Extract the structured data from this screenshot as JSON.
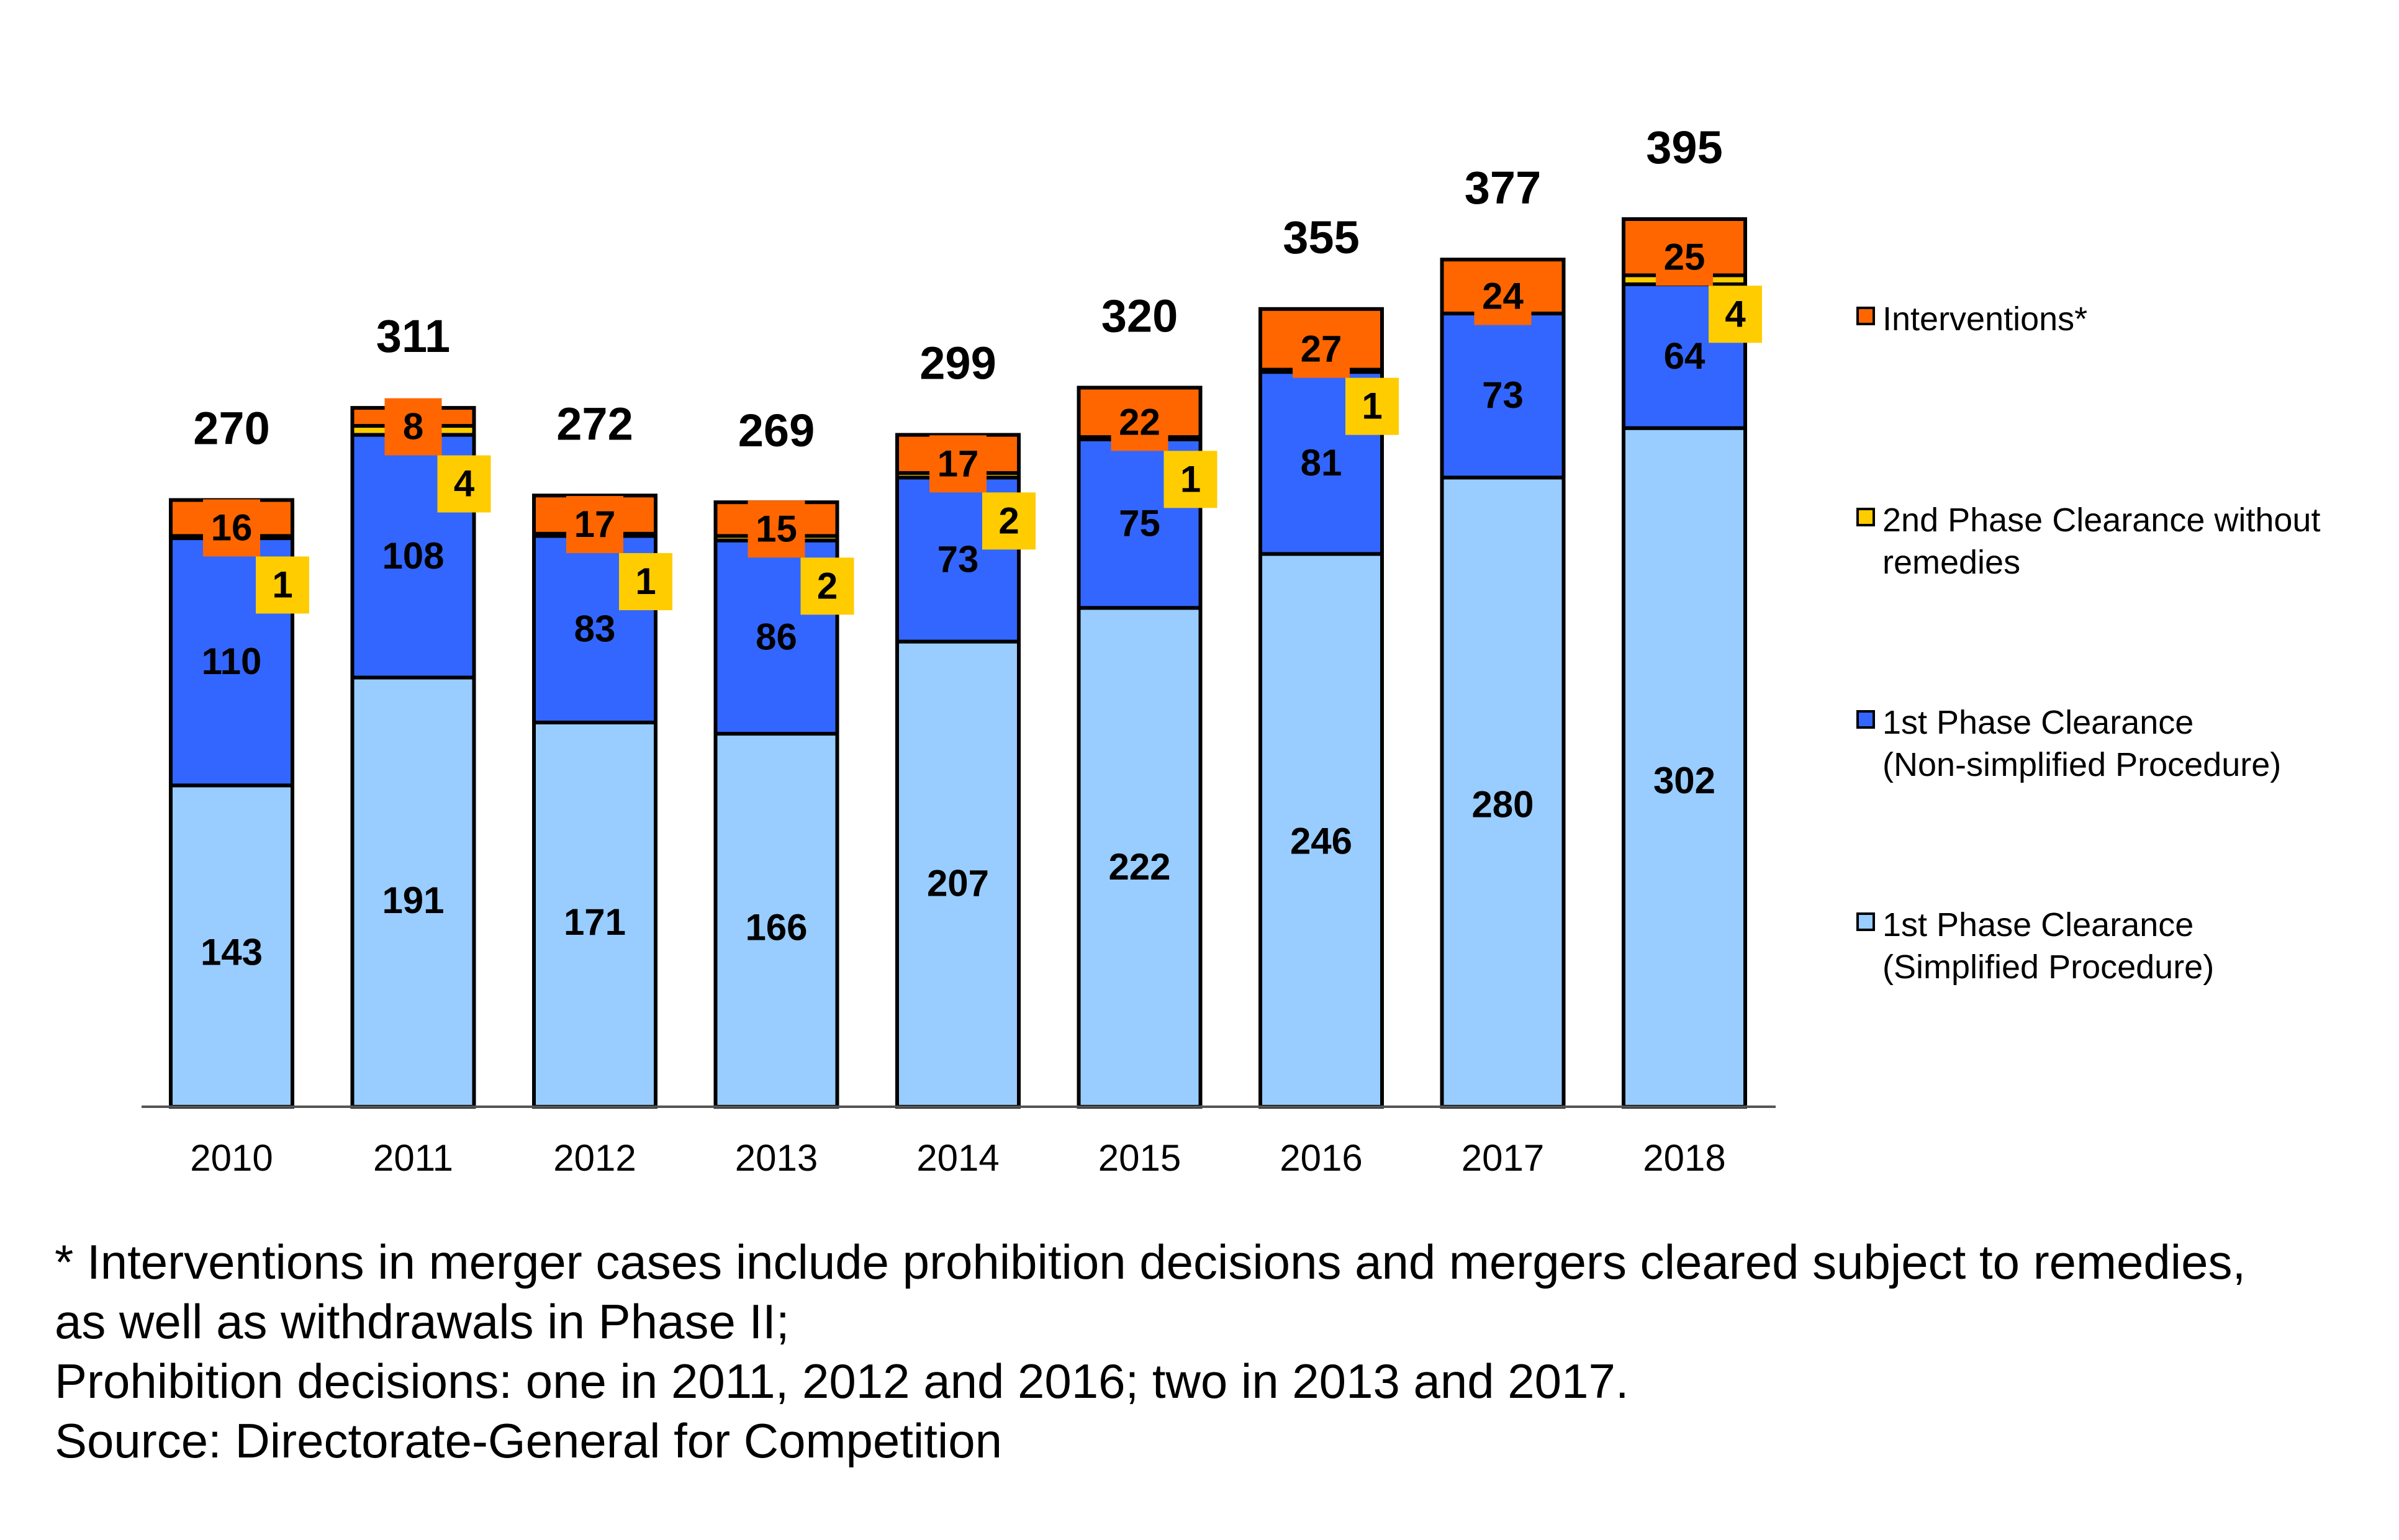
{
  "chart_data": {
    "type": "bar",
    "stacked": true,
    "title": "",
    "xlabel": "",
    "ylabel": "",
    "ylim": [
      0,
      395
    ],
    "grid": false,
    "legend_position": "right",
    "categories": [
      "2010",
      "2011",
      "2012",
      "2013",
      "2014",
      "2015",
      "2016",
      "2017",
      "2018"
    ],
    "totals": [
      270,
      311,
      272,
      269,
      299,
      320,
      355,
      377,
      395
    ],
    "series": [
      {
        "name": "1st Phase Clearance (Simplified Procedure)",
        "color": "#99ccff",
        "values": [
          143,
          191,
          171,
          166,
          207,
          222,
          246,
          280,
          302
        ]
      },
      {
        "name": "1st Phase Clearance (Non-simplified Procedure)",
        "color": "#3366ff",
        "values": [
          110,
          108,
          83,
          86,
          73,
          75,
          81,
          73,
          64
        ]
      },
      {
        "name": "2nd Phase Clearance without remedies",
        "color": "#ffcc00",
        "values": [
          1,
          4,
          1,
          2,
          2,
          1,
          1,
          0,
          4
        ]
      },
      {
        "name": "Interventions*",
        "color": "#ff6600",
        "values": [
          16,
          8,
          17,
          15,
          17,
          22,
          27,
          24,
          25
        ]
      }
    ]
  },
  "legend": [
    {
      "lines": [
        "Interventions*"
      ],
      "color": "#ff6600"
    },
    {
      "lines": [
        "2nd Phase Clearance without",
        "remedies"
      ],
      "color": "#ffcc00"
    },
    {
      "lines": [
        "1st Phase Clearance",
        "(Non-simplified Procedure)"
      ],
      "color": "#3366ff"
    },
    {
      "lines": [
        "1st Phase Clearance",
        "(Simplified Procedure)"
      ],
      "color": "#99ccff"
    }
  ],
  "notes": {
    "line1": "* Interventions in merger cases include prohibition decisions and mergers cleared subject to remedies,",
    "line2": "as well as withdrawals in Phase II;",
    "line3": "Prohibition decisions: one in 2011, 2012 and 2016; two in 2013 and 2017.",
    "line4": "Source: Directorate-General for Competition"
  }
}
